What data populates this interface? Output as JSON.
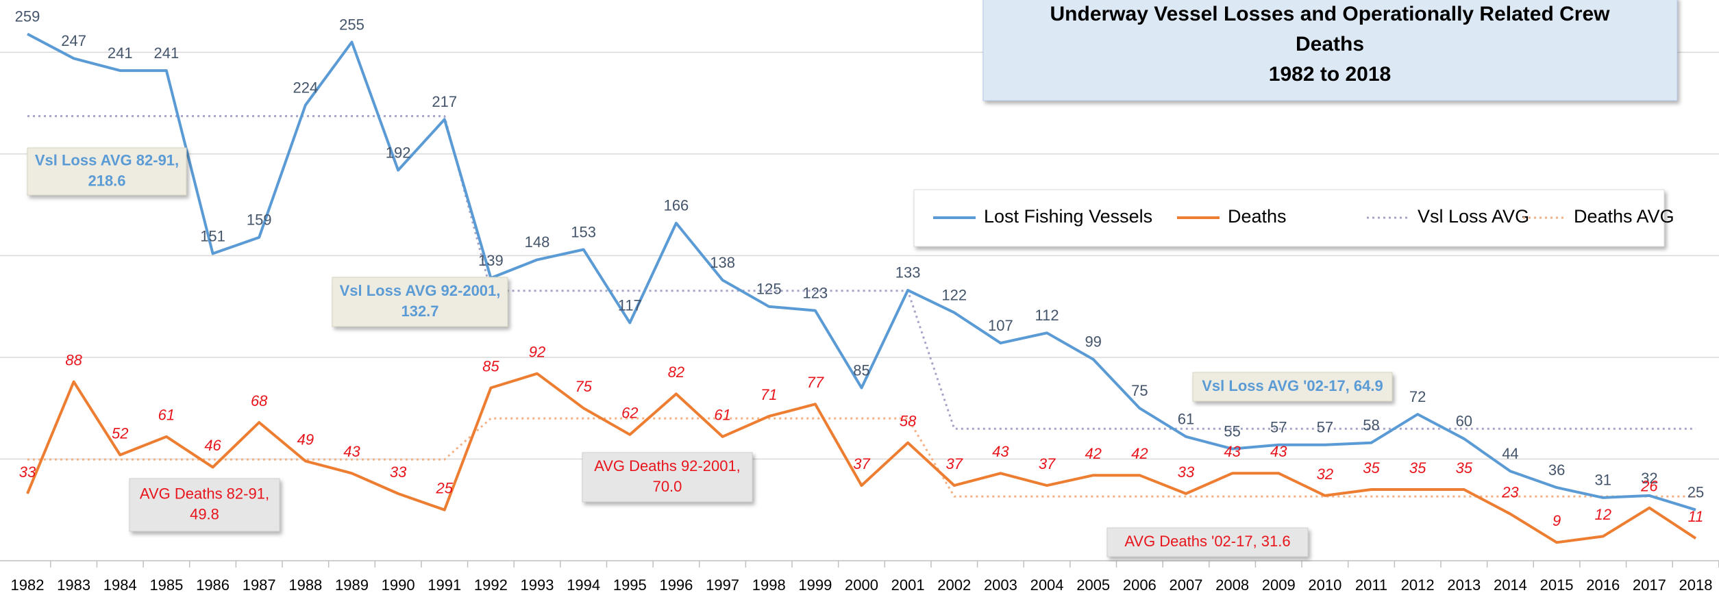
{
  "chart_data": {
    "type": "line",
    "title": [
      "Underway Vessel Losses and Operationally Related Crew",
      "Deaths",
      "1982 to 2018"
    ],
    "categories": [
      "1982",
      "1983",
      "1984",
      "1985",
      "1986",
      "1987",
      "1988",
      "1989",
      "1990",
      "1991",
      "1992",
      "1993",
      "1994",
      "1995",
      "1996",
      "1997",
      "1998",
      "1999",
      "2000",
      "2001",
      "2002",
      "2003",
      "2004",
      "2005",
      "2006",
      "2007",
      "2008",
      "2009",
      "2010",
      "2011",
      "2012",
      "2013",
      "2014",
      "2015",
      "2016",
      "2017",
      "2018"
    ],
    "series": [
      {
        "name": "Lost Fishing Vessels",
        "color": "#5b9bd5",
        "style": "solid",
        "labels": true,
        "label_color": "#44546a",
        "values": [
          259,
          247,
          241,
          241,
          151,
          159,
          224,
          255,
          192,
          217,
          139,
          148,
          153,
          117,
          166,
          138,
          125,
          123,
          85,
          133,
          122,
          107,
          112,
          99,
          75,
          61,
          55,
          57,
          57,
          58,
          72,
          60,
          44,
          36,
          31,
          32,
          25
        ]
      },
      {
        "name": "Deaths",
        "color": "#ed7d31",
        "style": "solid",
        "labels": true,
        "label_color": "#e8141c",
        "values": [
          33,
          88,
          52,
          61,
          46,
          68,
          49,
          43,
          33,
          25,
          85,
          92,
          75,
          62,
          82,
          61,
          71,
          77,
          37,
          58,
          37,
          43,
          37,
          42,
          42,
          33,
          43,
          43,
          32,
          35,
          35,
          35,
          23,
          9,
          12,
          26,
          11
        ]
      },
      {
        "name": "Vsl Loss AVG",
        "color": "#a5a5c8",
        "style": "dotted",
        "labels": false,
        "values": [
          218.6,
          218.6,
          218.6,
          218.6,
          218.6,
          218.6,
          218.6,
          218.6,
          218.6,
          218.6,
          132.7,
          132.7,
          132.7,
          132.7,
          132.7,
          132.7,
          132.7,
          132.7,
          132.7,
          132.7,
          64.9,
          64.9,
          64.9,
          64.9,
          64.9,
          64.9,
          64.9,
          64.9,
          64.9,
          64.9,
          64.9,
          64.9,
          64.9,
          64.9,
          64.9,
          64.9,
          64.9
        ]
      },
      {
        "name": "Deaths AVG",
        "color": "#f4b183",
        "style": "dotted",
        "labels": false,
        "values": [
          49.8,
          49.8,
          49.8,
          49.8,
          49.8,
          49.8,
          49.8,
          49.8,
          49.8,
          49.8,
          70,
          70,
          70,
          70,
          70,
          70,
          70,
          70,
          70,
          70,
          31.6,
          31.6,
          31.6,
          31.6,
          31.6,
          31.6,
          31.6,
          31.6,
          31.6,
          31.6,
          31.6,
          31.6,
          31.6,
          31.6,
          31.6,
          31.6,
          31.6
        ]
      }
    ],
    "annotations": [
      {
        "lines": [
          "Vsl Loss AVG 82-91,",
          "218.6"
        ],
        "kind": "vessel"
      },
      {
        "lines": [
          "Vsl Loss AVG 92-2001,",
          "132.7"
        ],
        "kind": "vessel"
      },
      {
        "lines": [
          "Vsl Loss AVG '02-17, 64.9"
        ],
        "kind": "vessel"
      },
      {
        "lines": [
          "AVG Deaths 82-91,",
          "49.8"
        ],
        "kind": "deaths"
      },
      {
        "lines": [
          "AVG Deaths 92-2001,",
          "70.0"
        ],
        "kind": "deaths"
      },
      {
        "lines": [
          "AVG Deaths '02-17, 31.6"
        ],
        "kind": "deaths"
      }
    ],
    "ylim": [
      0,
      272
    ],
    "yticks": [
      0,
      50,
      100,
      150,
      200,
      250
    ],
    "grid": true,
    "legend": "top-right"
  }
}
